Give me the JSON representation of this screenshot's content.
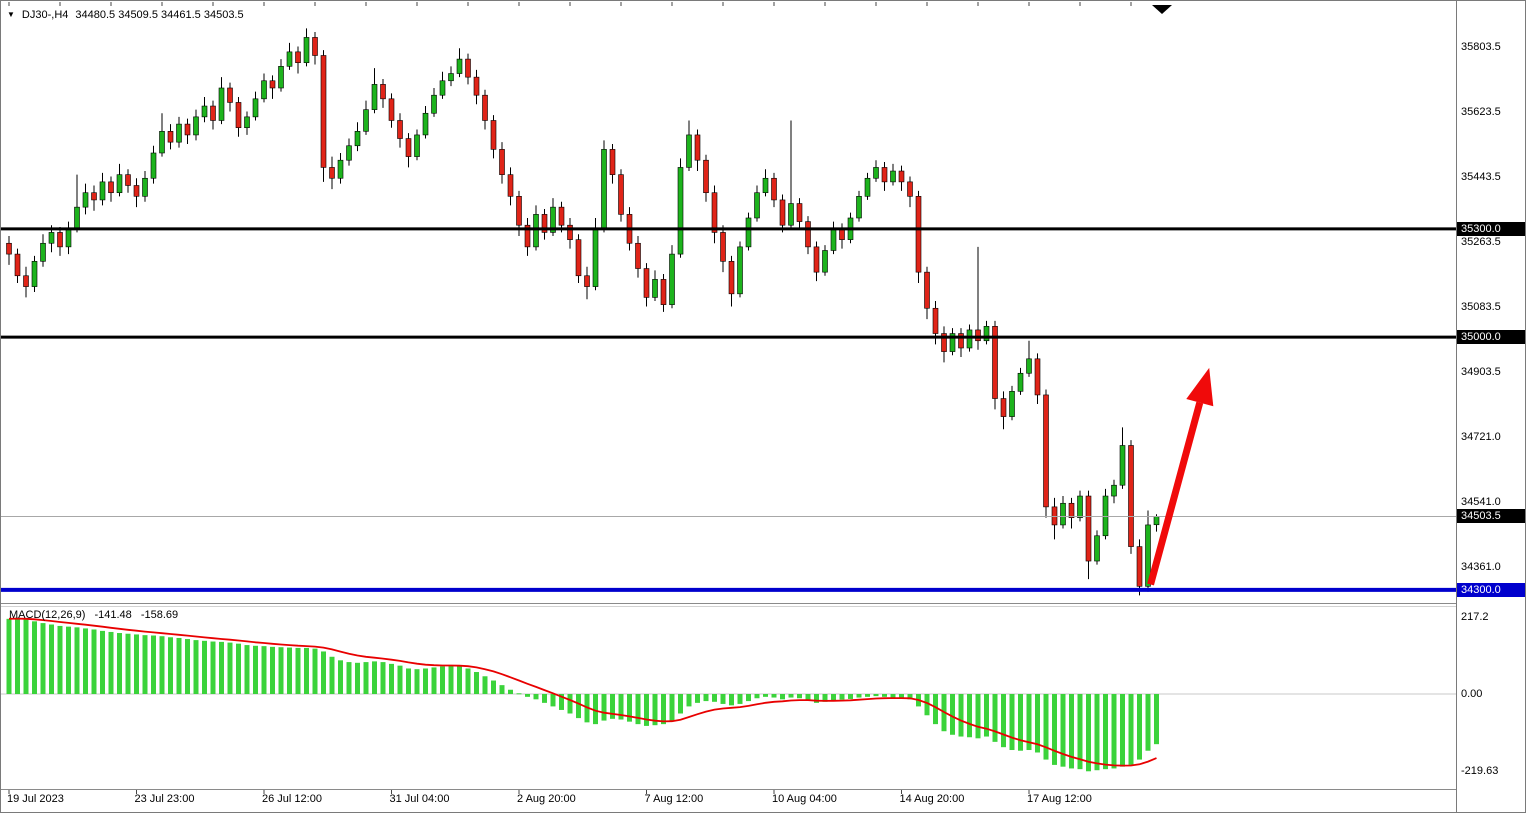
{
  "header": {
    "symbol_period": "DJ30-,H4",
    "ohlc": "34480.5 34509.5 34461.5 34503.5"
  },
  "colors": {
    "candle_up": "#1db31d",
    "candle_down": "#e02418",
    "wick": "#000000",
    "histogram": "#3bd33b",
    "signal_line": "#e80000",
    "arrow": "#f00a0a",
    "resistance_line": "#000000",
    "support_line": "#0000cd",
    "current_price_line": "#a8a8a8",
    "badge_fg": "#ffffff"
  },
  "chart_data": [
    {
      "type": "candlestick",
      "title": "DJ30-,H4",
      "symbol": "DJ30-",
      "timeframe": "H4",
      "ylim": [
        34240,
        35890
      ],
      "x_labels": [
        {
          "index": 0,
          "label": "19 Jul 2023"
        },
        {
          "index": 15,
          "label": "23 Jul 23:00"
        },
        {
          "index": 30,
          "label": "26 Jul 12:00"
        },
        {
          "index": 45,
          "label": "31 Jul 04:00"
        },
        {
          "index": 60,
          "label": "2 Aug 20:00"
        },
        {
          "index": 75,
          "label": "7 Aug 12:00"
        },
        {
          "index": 90,
          "label": "10 Aug 04:00"
        },
        {
          "index": 105,
          "label": "14 Aug 20:00"
        },
        {
          "index": 120,
          "label": "17 Aug 12:00"
        }
      ],
      "y_ticks": [
        {
          "v": 35803.5,
          "label": "35803.5"
        },
        {
          "v": 35623.5,
          "label": "35623.5"
        },
        {
          "v": 35443.5,
          "label": "35443.5"
        },
        {
          "v": 35263.5,
          "label": "35263.5"
        },
        {
          "v": 35083.5,
          "label": "35083.5"
        },
        {
          "v": 34903.5,
          "label": "34903.5"
        },
        {
          "v": 34721.0,
          "label": "34721.0"
        },
        {
          "v": 34541.0,
          "label": "34541.0"
        },
        {
          "v": 34361.0,
          "label": "34361.0"
        }
      ],
      "hlines": [
        {
          "price": 35300.0,
          "label": "35300.0",
          "color": "#000000",
          "width": 3,
          "badge_bg": "#000000"
        },
        {
          "price": 35000.0,
          "label": "35000.0",
          "color": "#000000",
          "width": 3,
          "badge_bg": "#000000"
        },
        {
          "price": 34300.0,
          "label": "34300.0",
          "color": "#0000cd",
          "width": 4,
          "badge_bg": "#0000cd"
        },
        {
          "price": 34503.5,
          "label": "34503.5",
          "color": "#a8a8a8",
          "width": 1,
          "badge_bg": "#000000"
        }
      ],
      "arrow": {
        "from_index": 134.3,
        "from_price": 34315,
        "to_index": 141.2,
        "to_price": 34915
      },
      "candles": [
        [
          35260,
          35280,
          35200,
          35230
        ],
        [
          35230,
          35245,
          35150,
          35170
        ],
        [
          35170,
          35195,
          35110,
          35140
        ],
        [
          35140,
          35225,
          35125,
          35210
        ],
        [
          35210,
          35285,
          35195,
          35260
        ],
        [
          35260,
          35310,
          35235,
          35290
        ],
        [
          35290,
          35305,
          35225,
          35250
        ],
        [
          35250,
          35320,
          35230,
          35300
        ],
        [
          35300,
          35450,
          35290,
          35360
        ],
        [
          35360,
          35425,
          35340,
          35400
        ],
        [
          35400,
          35420,
          35350,
          35380
        ],
        [
          35380,
          35455,
          35365,
          35430
        ],
        [
          35430,
          35445,
          35375,
          35400
        ],
        [
          35400,
          35480,
          35390,
          35450
        ],
        [
          35450,
          35465,
          35400,
          35420
        ],
        [
          35420,
          35440,
          35360,
          35390
        ],
        [
          35390,
          35460,
          35375,
          35440
        ],
        [
          35440,
          35530,
          35425,
          35510
        ],
        [
          35510,
          35620,
          35500,
          35570
        ],
        [
          35570,
          35590,
          35520,
          35540
        ],
        [
          35540,
          35610,
          35525,
          35590
        ],
        [
          35590,
          35605,
          35535,
          35560
        ],
        [
          35560,
          35630,
          35545,
          35610
        ],
        [
          35610,
          35665,
          35595,
          35640
        ],
        [
          35640,
          35655,
          35575,
          35600
        ],
        [
          35600,
          35720,
          35590,
          35690
        ],
        [
          35690,
          35705,
          35625,
          35650
        ],
        [
          35650,
          35665,
          35555,
          35580
        ],
        [
          35580,
          35625,
          35560,
          35610
        ],
        [
          35610,
          35680,
          35600,
          35660
        ],
        [
          35660,
          35730,
          35650,
          35710
        ],
        [
          35710,
          35725,
          35660,
          35690
        ],
        [
          35690,
          35770,
          35680,
          35750
        ],
        [
          35750,
          35815,
          35740,
          35790
        ],
        [
          35790,
          35805,
          35730,
          35760
        ],
        [
          35760,
          35855,
          35750,
          35830
        ],
        [
          35830,
          35845,
          35755,
          35780
        ],
        [
          35780,
          35795,
          35430,
          35470
        ],
        [
          35470,
          35500,
          35410,
          35440
        ],
        [
          35440,
          35510,
          35425,
          35490
        ],
        [
          35490,
          35550,
          35475,
          35530
        ],
        [
          35530,
          35595,
          35515,
          35570
        ],
        [
          35570,
          35655,
          35560,
          35630
        ],
        [
          35630,
          35745,
          35620,
          35700
        ],
        [
          35700,
          35715,
          35635,
          35660
        ],
        [
          35660,
          35675,
          35580,
          35600
        ],
        [
          35600,
          35620,
          35525,
          35550
        ],
        [
          35550,
          35565,
          35470,
          35500
        ],
        [
          35500,
          35575,
          35490,
          35560
        ],
        [
          35560,
          35640,
          35550,
          35620
        ],
        [
          35620,
          35690,
          35610,
          35670
        ],
        [
          35670,
          35735,
          35660,
          35710
        ],
        [
          35710,
          35750,
          35695,
          35730
        ],
        [
          35730,
          35800,
          35720,
          35770
        ],
        [
          35770,
          35785,
          35700,
          35720
        ],
        [
          35720,
          35740,
          35645,
          35670
        ],
        [
          35670,
          35685,
          35575,
          35600
        ],
        [
          35600,
          35615,
          35495,
          35520
        ],
        [
          35520,
          35540,
          35425,
          35450
        ],
        [
          35450,
          35470,
          35365,
          35390
        ],
        [
          35390,
          35405,
          35280,
          35310
        ],
        [
          35310,
          35330,
          35225,
          35250
        ],
        [
          35250,
          35365,
          35240,
          35340
        ],
        [
          35340,
          35355,
          35270,
          35290
        ],
        [
          35290,
          35385,
          35280,
          35360
        ],
        [
          35360,
          35375,
          35290,
          35310
        ],
        [
          35310,
          35330,
          35245,
          35270
        ],
        [
          35270,
          35285,
          35150,
          35170
        ],
        [
          35170,
          35195,
          35105,
          35140
        ],
        [
          35140,
          35330,
          35130,
          35300
        ],
        [
          35300,
          35545,
          35290,
          35520
        ],
        [
          35520,
          35535,
          35425,
          35450
        ],
        [
          35450,
          35465,
          35320,
          35340
        ],
        [
          35340,
          35360,
          35240,
          35260
        ],
        [
          35260,
          35280,
          35165,
          35190
        ],
        [
          35190,
          35205,
          35085,
          35110
        ],
        [
          35110,
          35185,
          35100,
          35160
        ],
        [
          35160,
          35175,
          35070,
          35090
        ],
        [
          35090,
          35255,
          35080,
          35230
        ],
        [
          35230,
          35495,
          35220,
          35470
        ],
        [
          35470,
          35600,
          35460,
          35560
        ],
        [
          35560,
          35575,
          35460,
          35490
        ],
        [
          35490,
          35505,
          35375,
          35400
        ],
        [
          35400,
          35420,
          35260,
          35290
        ],
        [
          35290,
          35310,
          35180,
          35210
        ],
        [
          35210,
          35225,
          35085,
          35120
        ],
        [
          35120,
          35265,
          35110,
          35250
        ],
        [
          35250,
          35345,
          35240,
          35330
        ],
        [
          35330,
          35420,
          35320,
          35400
        ],
        [
          35400,
          35465,
          35390,
          35440
        ],
        [
          35440,
          35455,
          35360,
          35380
        ],
        [
          35380,
          35395,
          35290,
          35310
        ],
        [
          35310,
          35600,
          35300,
          35370
        ],
        [
          35370,
          35385,
          35300,
          35320
        ],
        [
          35320,
          35335,
          35230,
          35250
        ],
        [
          35250,
          35265,
          35155,
          35180
        ],
        [
          35180,
          35255,
          35170,
          35240
        ],
        [
          35240,
          35320,
          35230,
          35300
        ],
        [
          35300,
          35315,
          35245,
          35270
        ],
        [
          35270,
          35345,
          35260,
          35330
        ],
        [
          35330,
          35405,
          35320,
          35390
        ],
        [
          35390,
          35455,
          35380,
          35440
        ],
        [
          35440,
          35490,
          35430,
          35470
        ],
        [
          35470,
          35485,
          35405,
          35430
        ],
        [
          35430,
          35480,
          35420,
          35460
        ],
        [
          35460,
          35475,
          35405,
          35430
        ],
        [
          35430,
          35445,
          35360,
          35390
        ],
        [
          35390,
          35405,
          35150,
          35180
        ],
        [
          35180,
          35195,
          35050,
          35080
        ],
        [
          35080,
          35100,
          34980,
          35010
        ],
        [
          35010,
          35030,
          34930,
          34960
        ],
        [
          34960,
          35025,
          34950,
          35010
        ],
        [
          35010,
          35025,
          34945,
          34970
        ],
        [
          34970,
          35035,
          34960,
          35020
        ],
        [
          35020,
          35250,
          34965,
          34990
        ],
        [
          34990,
          35045,
          34980,
          35030
        ],
        [
          35030,
          35045,
          34800,
          34830
        ],
        [
          34830,
          34850,
          34745,
          34780
        ],
        [
          34780,
          34865,
          34770,
          34850
        ],
        [
          34850,
          34915,
          34840,
          34900
        ],
        [
          34900,
          34990,
          34890,
          34940
        ],
        [
          34940,
          34955,
          34815,
          34840
        ],
        [
          34840,
          34855,
          34500,
          34530
        ],
        [
          34530,
          34555,
          34440,
          34480
        ],
        [
          34480,
          34560,
          34470,
          34540
        ],
        [
          34540,
          34555,
          34470,
          34500
        ],
        [
          34500,
          34575,
          34490,
          34560
        ],
        [
          34560,
          34575,
          34330,
          34380
        ],
        [
          34380,
          34465,
          34370,
          34450
        ],
        [
          34450,
          34580,
          34440,
          34560
        ],
        [
          34560,
          34605,
          34540,
          34590
        ],
        [
          34590,
          34750,
          34580,
          34700
        ],
        [
          34700,
          34715,
          34400,
          34420
        ],
        [
          34420,
          34440,
          34285,
          34310
        ],
        [
          34310,
          34520,
          34295,
          34480
        ],
        [
          34480.5,
          34509.5,
          34461.5,
          34503.5
        ]
      ]
    },
    {
      "type": "bar",
      "name": "MACD",
      "label": "MACD(12,26,9)",
      "main_value": "-141.48",
      "signal_value": "-158.69",
      "signal_period": 9,
      "ylim": [
        -240,
        230
      ],
      "y_ticks": [
        {
          "v": 217.2,
          "label": "217.2"
        },
        {
          "v": 0,
          "label": "0.00"
        },
        {
          "v": -219.63,
          "label": "-219.63"
        }
      ],
      "histogram": [
        212,
        215,
        210,
        205,
        200,
        196,
        192,
        190,
        188,
        185,
        182,
        178,
        175,
        172,
        170,
        168,
        166,
        165,
        163,
        160,
        158,
        155,
        152,
        150,
        148,
        147,
        145,
        142,
        138,
        136,
        135,
        133,
        132,
        131,
        130,
        130,
        128,
        120,
        105,
        95,
        90,
        88,
        90,
        92,
        90,
        85,
        80,
        72,
        70,
        72,
        75,
        78,
        80,
        78,
        72,
        62,
        50,
        38,
        25,
        12,
        2,
        -8,
        -15,
        -25,
        -35,
        -45,
        -55,
        -68,
        -80,
        -85,
        -75,
        -70,
        -72,
        -78,
        -85,
        -90,
        -88,
        -85,
        -75,
        -55,
        -35,
        -25,
        -20,
        -22,
        -28,
        -32,
        -28,
        -20,
        -12,
        -8,
        -10,
        -15,
        -10,
        -12,
        -18,
        -25,
        -22,
        -18,
        -16,
        -14,
        -10,
        -8,
        -6,
        -8,
        -10,
        -12,
        -15,
        -35,
        -60,
        -85,
        -105,
        -115,
        -120,
        -122,
        -125,
        -120,
        -135,
        -150,
        -158,
        -160,
        -158,
        -165,
        -185,
        -200,
        -205,
        -210,
        -212,
        -218,
        -215,
        -212,
        -210,
        -205,
        -200,
        -185,
        -160,
        -141.5
      ]
    }
  ]
}
